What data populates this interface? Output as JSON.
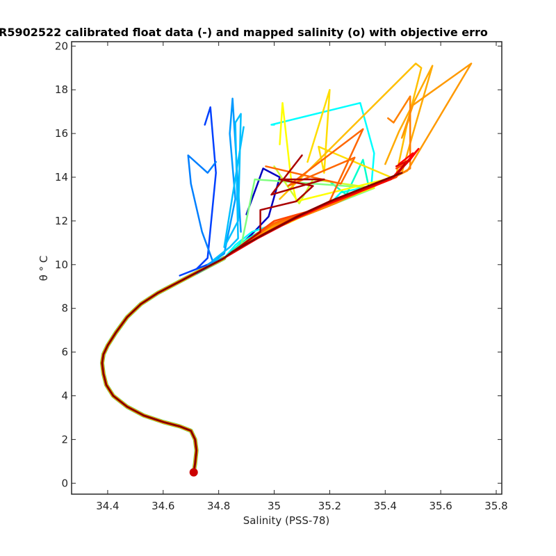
{
  "chart_data": {
    "type": "line",
    "title": "R5902522 calibrated float data (-) and mapped salinity (o) with objective erro",
    "xlabel": "Salinity (PSS-78)",
    "ylabel": "θ ° C",
    "xlim": [
      34.27,
      35.82
    ],
    "ylim": [
      -0.5,
      20.2
    ],
    "xticks": [
      34.4,
      34.6,
      34.8,
      35,
      35.2,
      35.4,
      35.6,
      35.8
    ],
    "xtick_labels": [
      "34.4",
      "34.6",
      "34.8",
      "35",
      "35.2",
      "35.4",
      "35.6",
      "35.8"
    ],
    "yticks": [
      0,
      2,
      4,
      6,
      8,
      10,
      12,
      14,
      16,
      18,
      20
    ],
    "ytick_labels": [
      "0",
      "2",
      "4",
      "6",
      "8",
      "10",
      "12",
      "14",
      "16",
      "18",
      "20"
    ],
    "grid": false,
    "common_deep_profile": {
      "x": [
        34.71,
        34.715,
        34.72,
        34.715,
        34.7,
        34.66,
        34.6,
        34.53,
        34.47,
        34.42,
        34.395,
        34.385,
        34.38,
        34.385,
        34.4,
        34.43,
        34.47,
        34.52,
        34.58,
        34.64,
        34.7,
        34.76,
        34.82
      ],
      "y": [
        0.5,
        0.9,
        1.5,
        2.0,
        2.4,
        2.6,
        2.8,
        3.1,
        3.5,
        4.0,
        4.5,
        5.0,
        5.5,
        5.9,
        6.3,
        6.9,
        7.6,
        8.2,
        8.7,
        9.1,
        9.5,
        9.9,
        10.3
      ]
    },
    "series": [
      {
        "color": "#0000bf",
        "x": [
          34.82,
          34.86,
          34.92,
          34.98,
          35.02,
          34.96,
          34.9
        ],
        "y": [
          10.3,
          10.7,
          11.4,
          12.2,
          14.0,
          14.4,
          12.3
        ]
      },
      {
        "color": "#0040ff",
        "x": [
          34.66,
          34.72,
          34.76,
          34.79,
          34.77,
          34.75
        ],
        "y": [
          9.5,
          9.8,
          10.3,
          14.2,
          17.2,
          16.4
        ]
      },
      {
        "color": "#007fff",
        "x": [
          34.72,
          34.78,
          34.74,
          34.7,
          34.69,
          34.76,
          34.79
        ],
        "y": [
          9.6,
          10.1,
          11.5,
          13.7,
          15.0,
          14.2,
          14.7
        ]
      },
      {
        "color": "#0099ff",
        "x": [
          34.76,
          34.82,
          34.86,
          34.84,
          34.85,
          34.88
        ],
        "y": [
          10.0,
          10.5,
          13.0,
          16.0,
          17.6,
          11.5
        ]
      },
      {
        "color": "#00bfff",
        "x": [
          34.78,
          34.84,
          34.87,
          34.86,
          34.88,
          34.87,
          34.82,
          34.89
        ],
        "y": [
          10.2,
          10.8,
          11.2,
          16.5,
          16.9,
          12.0,
          10.8,
          16.3
        ]
      },
      {
        "color": "#00ffff",
        "x": [
          34.86,
          34.92,
          35.06,
          35.15,
          35.21,
          35.24,
          35.35,
          35.36,
          35.31,
          34.99,
          35.0
        ],
        "y": [
          10.9,
          11.5,
          12.1,
          12.5,
          12.9,
          13.3,
          13.6,
          15.1,
          17.4,
          16.4,
          16.4
        ]
      },
      {
        "color": "#00ffcc",
        "x": [
          34.88,
          34.96,
          35.08,
          35.18,
          35.26,
          35.34,
          35.32,
          35.26,
          35.2
        ],
        "y": [
          11.0,
          11.6,
          12.1,
          12.6,
          13.1,
          13.6,
          14.8,
          13.2,
          13.8
        ]
      },
      {
        "color": "#80ff80",
        "x": [
          34.9,
          35.0,
          35.1,
          35.2,
          35.3,
          35.36,
          34.93,
          34.88
        ],
        "y": [
          11.1,
          11.7,
          12.2,
          12.7,
          13.2,
          13.5,
          13.9,
          10.8
        ]
      },
      {
        "color": "#ccff33",
        "x": [
          34.92,
          35.0,
          35.1,
          35.2,
          35.3,
          35.36,
          35.14,
          35.09,
          35.0
        ],
        "y": [
          11.2,
          11.8,
          12.3,
          12.8,
          13.3,
          13.5,
          13.9,
          12.8,
          14.5
        ]
      },
      {
        "color": "#ffff00",
        "x": [
          34.93,
          35.02,
          35.12,
          35.22,
          35.32,
          35.4,
          35.08,
          35.06,
          35.03,
          35.02
        ],
        "y": [
          11.3,
          11.8,
          12.4,
          12.9,
          13.4,
          13.9,
          12.9,
          14.0,
          17.4,
          15.5
        ]
      },
      {
        "color": "#ffdd00",
        "x": [
          34.95,
          35.05,
          35.15,
          35.25,
          35.35,
          35.42,
          35.16,
          35.18,
          35.2,
          35.12
        ],
        "y": [
          11.4,
          11.9,
          12.5,
          13.0,
          13.5,
          14.0,
          15.4,
          14.2,
          18.0,
          14.7
        ]
      },
      {
        "color": "#ffbf00",
        "x": [
          34.96,
          35.06,
          35.16,
          35.26,
          35.36,
          35.44,
          35.48,
          35.53,
          35.51,
          35.02
        ],
        "y": [
          11.5,
          12.0,
          12.5,
          13.1,
          13.6,
          14.1,
          16.5,
          19.0,
          19.2,
          13.0
        ]
      },
      {
        "color": "#ffaa00",
        "x": [
          34.97,
          35.08,
          35.18,
          35.28,
          35.38,
          35.46,
          35.5,
          35.57,
          35.45,
          35.4
        ],
        "y": [
          11.6,
          12.1,
          12.6,
          13.2,
          13.7,
          14.2,
          16.0,
          19.1,
          16.1,
          14.6
        ]
      },
      {
        "color": "#ff9900",
        "x": [
          34.98,
          35.1,
          35.2,
          35.3,
          35.4,
          35.48,
          35.71,
          35.5,
          35.46,
          35.49
        ],
        "y": [
          11.7,
          12.2,
          12.7,
          13.3,
          13.8,
          14.3,
          19.2,
          17.3,
          15.8,
          16.8
        ]
      },
      {
        "color": "#ff8000",
        "x": [
          34.99,
          35.12,
          35.22,
          35.32,
          35.42,
          35.49,
          35.49,
          35.43,
          35.41
        ],
        "y": [
          11.8,
          12.3,
          12.8,
          13.4,
          13.9,
          14.4,
          17.7,
          16.5,
          16.7
        ]
      },
      {
        "color": "#ff6600",
        "x": [
          35.0,
          35.12,
          35.2,
          35.32,
          35.05,
          35.29,
          35.24,
          34.97
        ],
        "y": [
          11.9,
          12.4,
          12.9,
          16.2,
          13.6,
          14.9,
          13.7,
          14.5
        ]
      },
      {
        "color": "#ff4400",
        "x": [
          35.0,
          35.14,
          35.24,
          35.34,
          35.44,
          35.47,
          35.44
        ],
        "y": [
          12.0,
          12.5,
          13.0,
          13.5,
          14.0,
          14.6,
          14.4
        ]
      },
      {
        "color": "#ff0000",
        "x": [
          34.82,
          34.94,
          35.06,
          35.18,
          35.3,
          35.42,
          35.52,
          35.49,
          35.5,
          35.45
        ],
        "y": [
          10.3,
          11.2,
          12.0,
          12.7,
          13.3,
          13.9,
          15.3,
          14.8,
          15.1,
          14.6
        ]
      },
      {
        "color": "#e00000",
        "x": [
          34.83,
          34.95,
          35.07,
          35.19,
          35.31,
          35.43,
          35.49,
          35.44
        ],
        "y": [
          10.4,
          11.3,
          12.1,
          12.8,
          13.4,
          14.0,
          14.8,
          14.5
        ]
      },
      {
        "color": "#bf0000",
        "x": [
          34.84,
          34.96,
          35.08,
          35.2,
          35.32,
          35.44,
          35.47
        ],
        "y": [
          10.5,
          11.4,
          12.2,
          12.9,
          13.5,
          14.1,
          14.6
        ]
      },
      {
        "color": "#aa0000",
        "x": [
          34.84,
          34.95,
          34.95,
          35.08,
          35.14,
          35.02,
          35.18,
          34.99,
          35.1
        ],
        "y": [
          10.5,
          11.5,
          12.5,
          12.9,
          13.6,
          13.9,
          13.9,
          13.2,
          15.0
        ]
      },
      {
        "color": "#800000",
        "x": [
          34.85,
          34.98,
          35.1,
          35.22,
          35.34,
          35.46
        ],
        "y": [
          10.6,
          11.5,
          12.3,
          13.0,
          13.6,
          14.2
        ]
      }
    ]
  }
}
